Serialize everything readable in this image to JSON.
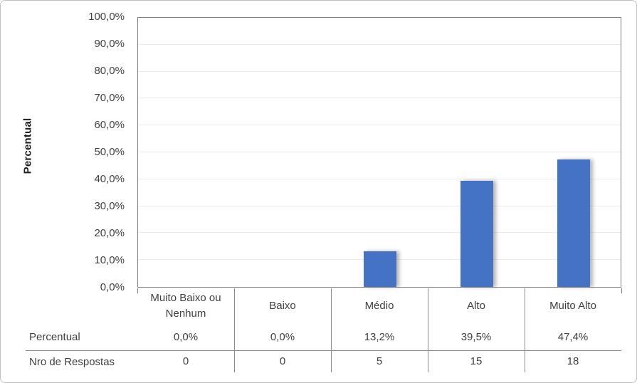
{
  "chart_data": {
    "type": "bar",
    "title": "",
    "xlabel": "",
    "ylabel": "Percentual",
    "categories": [
      "Muito Baixo ou Nenhum",
      "Baixo",
      "Médio",
      "Alto",
      "Muito Alto"
    ],
    "series": [
      {
        "name": "Percentual",
        "values": [
          0.0,
          0.0,
          13.2,
          39.5,
          47.4
        ],
        "labels": [
          "0,0%",
          "0,0%",
          "13,2%",
          "39,5%",
          "47,4%"
        ]
      },
      {
        "name": "Nro de Respostas",
        "values": [
          0,
          0,
          5,
          15,
          18
        ],
        "labels": [
          "0",
          "0",
          "5",
          "15",
          "18"
        ]
      }
    ],
    "plotted_series": "Percentual",
    "ylim": [
      0,
      100
    ],
    "ytick_step": 10,
    "ytick_labels": [
      "0,0%",
      "10,0%",
      "20,0%",
      "30,0%",
      "40,0%",
      "50,0%",
      "60,0%",
      "70,0%",
      "80,0%",
      "90,0%",
      "100,0%"
    ],
    "grid": true,
    "legend": false,
    "data_table_shown": true,
    "bar_color": "#4472C4"
  }
}
